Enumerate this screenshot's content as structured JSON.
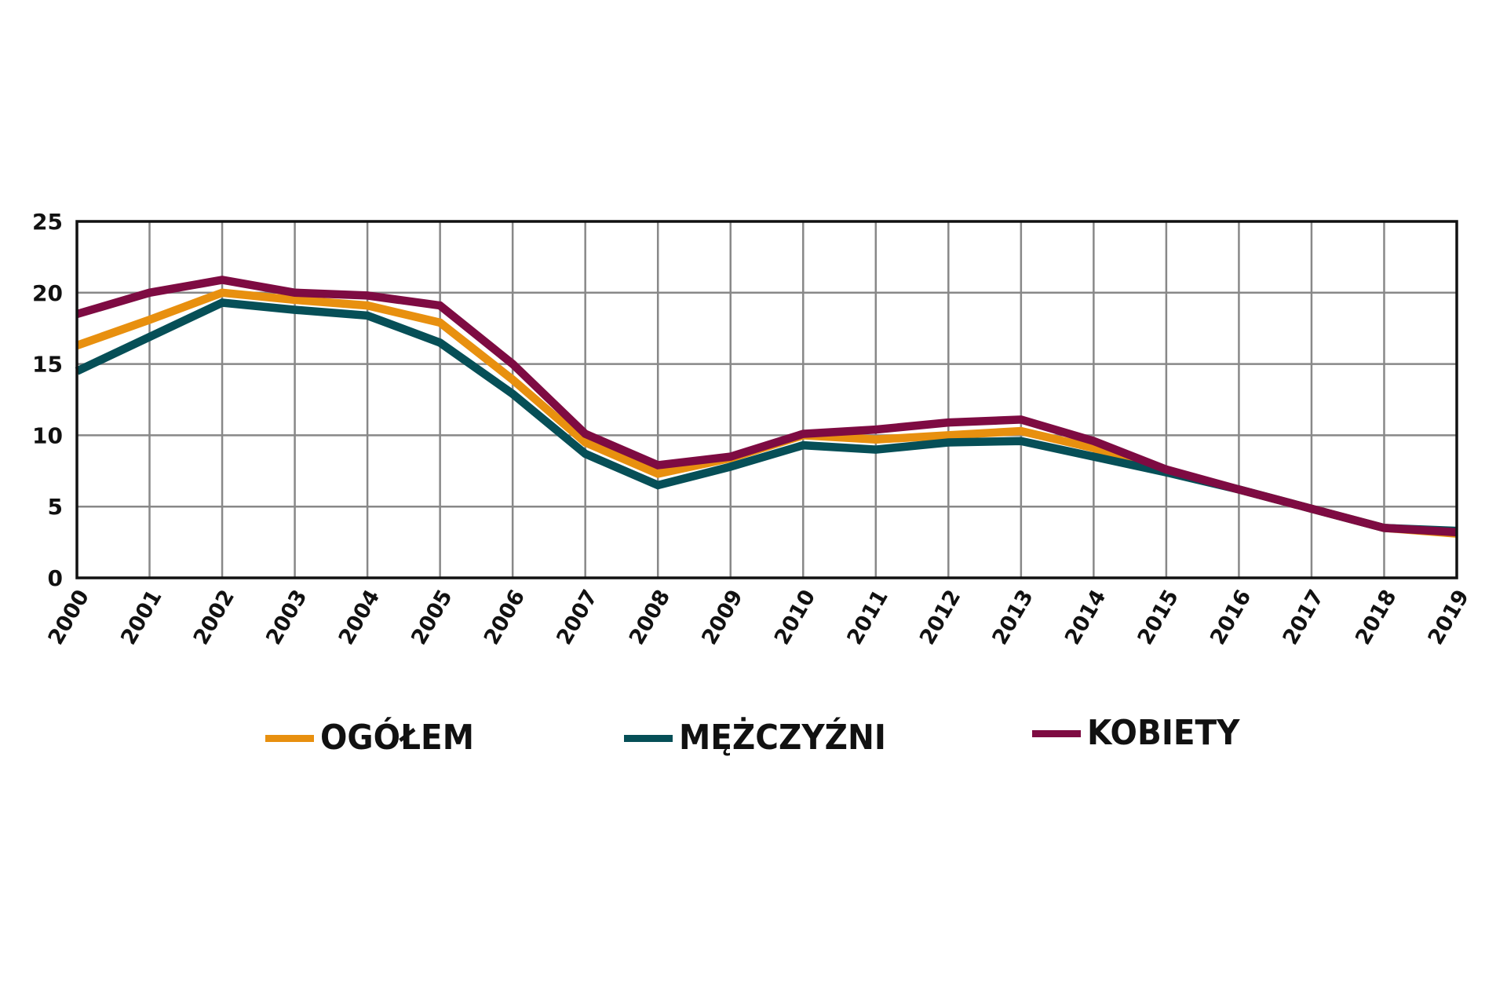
{
  "chart_data": {
    "type": "line",
    "title": "",
    "xlabel": "",
    "ylabel": "",
    "ylim": [
      0,
      25
    ],
    "yticks": [
      0,
      5,
      10,
      15,
      20,
      25
    ],
    "grid": true,
    "legend_position": "bottom",
    "x": [
      "2000",
      "2001",
      "2002",
      "2003",
      "2004",
      "2005",
      "2006",
      "2007",
      "2008",
      "2009",
      "2010",
      "2011",
      "2012",
      "2013",
      "2014",
      "2015",
      "2016",
      "2017",
      "2018",
      "2019"
    ],
    "series": [
      {
        "name": "OGÓŁEM",
        "color": "#E8900F",
        "values": [
          16.3,
          18.1,
          20.0,
          19.5,
          19.1,
          17.9,
          13.9,
          9.5,
          7.3,
          8.4,
          10.0,
          9.7,
          10.0,
          10.3,
          9.1,
          7.5,
          6.2,
          4.85,
          3.5,
          3.1
        ]
      },
      {
        "name": "MĘŻCZYŹNI",
        "color": "#064F57",
        "values": [
          14.5,
          16.9,
          19.3,
          18.8,
          18.4,
          16.5,
          12.9,
          8.7,
          6.5,
          7.8,
          9.3,
          9.0,
          9.5,
          9.6,
          8.5,
          7.4,
          6.2,
          4.85,
          3.5,
          3.3
        ]
      },
      {
        "name": "KOBIETY",
        "color": "#7E0B42",
        "values": [
          18.5,
          20.0,
          20.9,
          20.0,
          19.8,
          19.1,
          15.0,
          10.1,
          7.9,
          8.5,
          10.1,
          10.4,
          10.9,
          11.1,
          9.6,
          7.6,
          6.2,
          4.85,
          3.5,
          3.2
        ]
      }
    ]
  },
  "legend": {
    "items": [
      {
        "label": "OGÓŁEM",
        "color": "#E8900F"
      },
      {
        "label": "MĘŻCZYŹNI",
        "color": "#064F57"
      },
      {
        "label": "KOBIETY",
        "color": "#7E0B42"
      }
    ]
  },
  "style": {
    "grid_color": "#888888",
    "axis_color": "#111111"
  }
}
